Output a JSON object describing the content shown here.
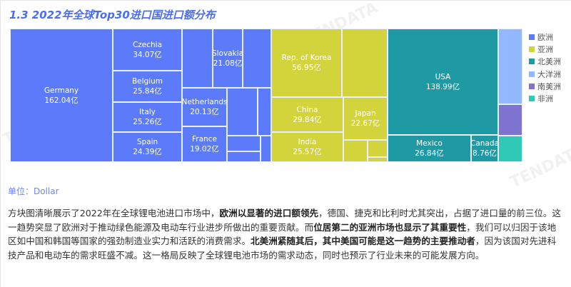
{
  "title": "1.3 2022年全球Top30进口国进口额分布",
  "watermark": "TENDATA",
  "unit": "单位：Dollar",
  "colors": {
    "欧洲": "#5b7bfb",
    "亚洲": "#d3d43b",
    "北美洲": "#1f9aa5",
    "大洋洲": "#94b8fd",
    "南美洲": "#7f73d1",
    "非洲": "#30c9b6"
  },
  "chart_data": {
    "type": "treemap",
    "title": "1.3 2022年全球Top30进口国进口额分布",
    "legend": [
      "欧洲",
      "亚洲",
      "北美洲",
      "大洋洲",
      "南美洲",
      "非洲"
    ],
    "legend_placement": "right",
    "value_suffix": "亿",
    "cells": [
      {
        "name": "Germany",
        "value": 162.04,
        "group": "欧洲"
      },
      {
        "name": "Czechia",
        "value": 34.07,
        "group": "欧洲"
      },
      {
        "name": "Belgium",
        "value": 25.84,
        "group": "欧洲"
      },
      {
        "name": "Italy",
        "value": 25.26,
        "group": "欧洲"
      },
      {
        "name": "Spain",
        "value": 24.39,
        "group": "欧洲"
      },
      {
        "name": "",
        "value": null,
        "group": "欧洲"
      },
      {
        "name": "Slovakia",
        "value": 21.08,
        "group": "欧洲"
      },
      {
        "name": "",
        "value": null,
        "group": "欧洲"
      },
      {
        "name": "Netherlands",
        "value": 20.13,
        "group": "欧洲"
      },
      {
        "name": "France",
        "value": 19.02,
        "group": "欧洲"
      },
      {
        "name": "",
        "value": null,
        "group": "欧洲"
      },
      {
        "name": "",
        "value": null,
        "group": "欧洲"
      },
      {
        "name": "",
        "value": null,
        "group": "欧洲"
      },
      {
        "name": "",
        "value": null,
        "group": "欧洲"
      },
      {
        "name": "",
        "value": null,
        "group": "欧洲"
      },
      {
        "name": "Rep. of Korea",
        "value": 56.95,
        "group": "亚洲"
      },
      {
        "name": "",
        "value": null,
        "group": "亚洲"
      },
      {
        "name": "China",
        "value": 29.84,
        "group": "亚洲"
      },
      {
        "name": "India",
        "value": 25.57,
        "group": "亚洲"
      },
      {
        "name": "Japan",
        "value": 22.67,
        "group": "亚洲"
      },
      {
        "name": "",
        "value": null,
        "group": "亚洲"
      },
      {
        "name": "",
        "value": null,
        "group": "亚洲"
      },
      {
        "name": "",
        "value": null,
        "group": "亚洲"
      },
      {
        "name": "USA",
        "value": 138.99,
        "group": "北美洲"
      },
      {
        "name": "Mexico",
        "value": 26.84,
        "group": "北美洲"
      },
      {
        "name": "Canada",
        "value": 8.76,
        "group": "北美洲"
      },
      {
        "name": "",
        "value": null,
        "group": "大洋洲"
      },
      {
        "name": "",
        "value": null,
        "group": "南美洲"
      },
      {
        "name": "",
        "value": null,
        "group": "非洲"
      }
    ]
  },
  "description": [
    {
      "t": "方块图清晰展示了2022年在全球锂电池进口市场中，",
      "b": false
    },
    {
      "t": "欧洲以显著的进口额领先",
      "b": true
    },
    {
      "t": "，德国、捷克和比利时尤其突出，占据了进口量的前三位。这一趋势突显了欧洲对于推动绿色能源及电动车行业进步所做出的重要贡献。而",
      "b": false
    },
    {
      "t": "位居第二的亚洲市场也显示了其重要性",
      "b": true
    },
    {
      "t": "，我们可以归因于该地区如中国和韩国等国家的强劲制造业实力和活跃的消费需求。",
      "b": false
    },
    {
      "t": "北美洲紧随其后，其中美国可能是这一趋势的主要推动者",
      "b": true
    },
    {
      "t": "，因为该国对先进科技产品和电动车的需求旺盛不减。这一格局反映了全球锂电池市场的需求动态，同时也预示了行业未来的可能发展方向。",
      "b": false
    }
  ]
}
